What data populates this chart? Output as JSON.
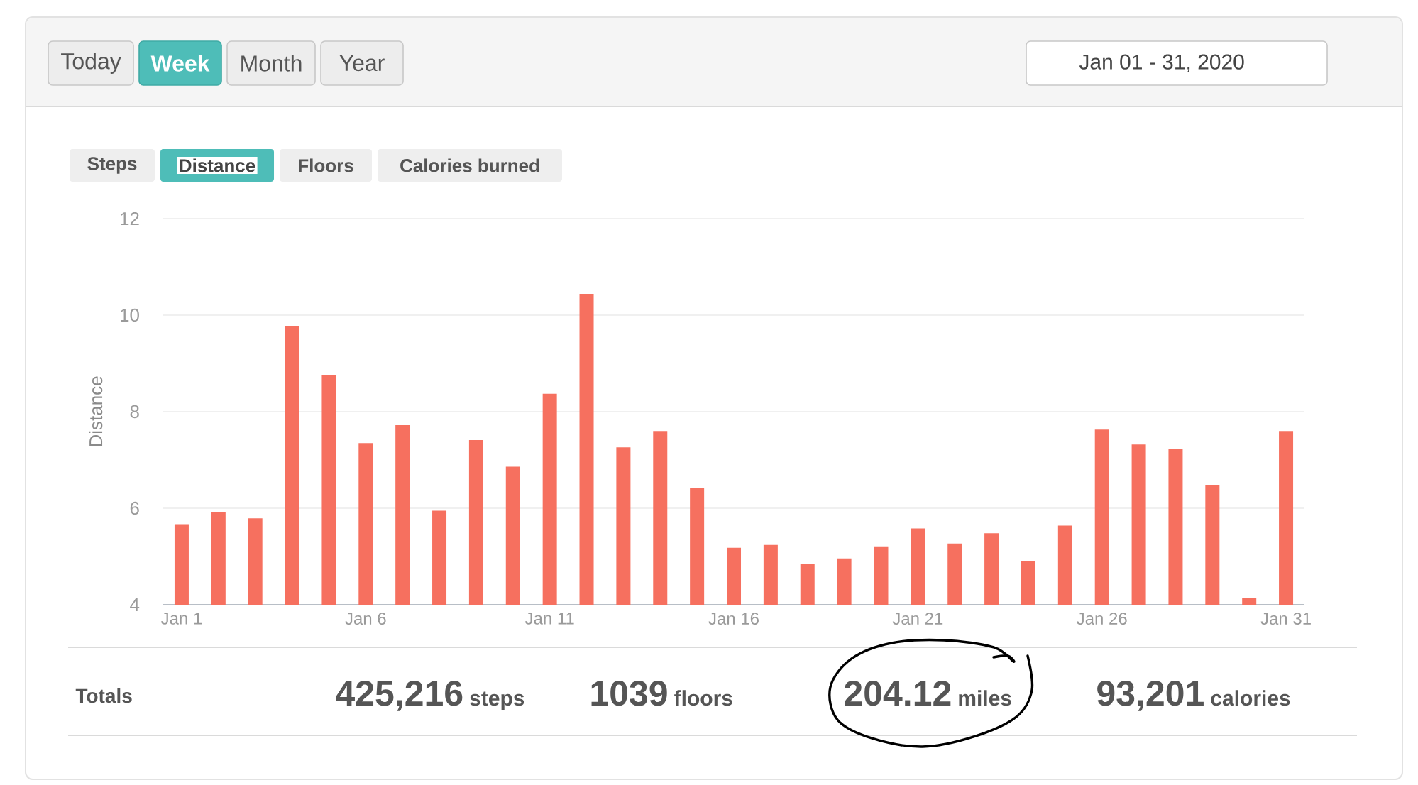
{
  "chart_data": {
    "type": "bar",
    "ylabel": "Distance",
    "categories": [
      "Jan 1",
      null,
      null,
      null,
      null,
      "Jan 6",
      null,
      null,
      null,
      null,
      "Jan 11",
      null,
      null,
      null,
      null,
      "Jan 16",
      null,
      null,
      null,
      null,
      "Jan 21",
      null,
      null,
      null,
      null,
      "Jan 26",
      null,
      null,
      null,
      null,
      "Jan 31"
    ],
    "values": [
      5.67,
      5.92,
      5.79,
      9.77,
      8.76,
      7.35,
      7.72,
      5.95,
      7.41,
      6.86,
      8.37,
      10.44,
      7.26,
      7.6,
      6.41,
      5.18,
      5.24,
      4.85,
      4.96,
      5.21,
      5.58,
      5.27,
      5.48,
      4.9,
      5.64,
      7.63,
      7.32,
      7.23,
      6.47,
      4.14,
      7.6
    ],
    "color": "#f6705f",
    "ylim": [
      4,
      12
    ],
    "yticks": [
      4,
      6,
      8,
      10,
      12
    ],
    "grid": "y",
    "annotations": [
      "Today",
      "Week",
      "Month",
      "Year",
      "Jan 01 - 31, 2020",
      "Steps",
      "Distance",
      "Floors",
      "Calories burned",
      "Totals",
      "425,216",
      "steps",
      "1039",
      "floors",
      "204.12",
      "miles",
      "93,201",
      "calories"
    ]
  }
}
